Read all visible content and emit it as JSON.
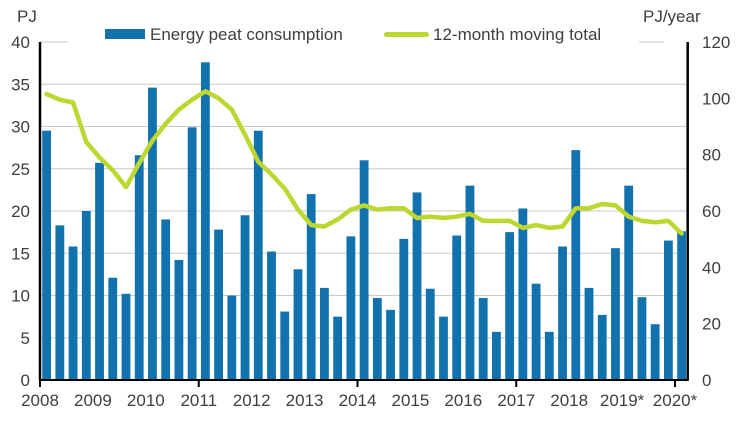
{
  "colors": {
    "bar": "#1272ae",
    "line": "#bed630",
    "grid": "#c9c9c9",
    "axis": "#000000",
    "text": "#3f3f3f",
    "background": "#ffffff"
  },
  "chart_data": {
    "type": "bar+line",
    "title": "",
    "x_frequency": "quarterly",
    "x_start": "2008-Q1",
    "x_axis": {
      "labels": [
        "2008",
        "2009",
        "2010",
        "2011",
        "2012",
        "2013",
        "2014",
        "2015",
        "2016",
        "2017",
        "2018",
        "2019*",
        "2020*"
      ],
      "tick_years": [
        "2008",
        "2011",
        "2014",
        "2017",
        "2020"
      ]
    },
    "left_axis": {
      "title": "PJ",
      "min": 0,
      "max": 40,
      "tick_step": 5,
      "tick_labels": [
        "0",
        "5",
        "10",
        "15",
        "20",
        "25",
        "30",
        "35",
        "40"
      ]
    },
    "right_axis": {
      "title": "PJ/year",
      "min": 0,
      "max": 120,
      "tick_step": 20,
      "tick_labels": [
        "0",
        "20",
        "40",
        "60",
        "80",
        "100",
        "120"
      ]
    },
    "grid": true,
    "legend_position": "top",
    "series": [
      {
        "name": "Energy peat consumption",
        "type": "bar",
        "axis": "left",
        "unit": "PJ",
        "values": [
          29.5,
          18.3,
          15.8,
          20.0,
          25.7,
          12.1,
          10.2,
          26.6,
          34.6,
          19.0,
          14.2,
          29.9,
          37.6,
          17.8,
          10.0,
          19.5,
          29.5,
          15.2,
          8.1,
          13.1,
          22.0,
          10.9,
          7.5,
          17.0,
          26.0,
          9.7,
          8.3,
          16.7,
          22.2,
          10.8,
          7.5,
          17.1,
          23.0,
          9.7,
          5.7,
          17.5,
          20.3,
          11.4,
          5.7,
          15.8,
          27.2,
          10.9,
          7.7,
          15.6,
          23.0,
          9.8,
          6.6,
          16.5,
          17.6
        ]
      },
      {
        "name": "12-month moving total",
        "type": "line",
        "axis": "right",
        "unit": "PJ/year",
        "values": [
          101.5,
          99.5,
          98.5,
          84.5,
          79,
          74.5,
          68.5,
          77,
          85,
          91,
          96,
          99.5,
          102.5,
          100,
          96,
          87,
          77.5,
          73,
          68,
          60.5,
          55,
          54.5,
          57,
          60.5,
          62,
          60.5,
          61,
          61,
          57.5,
          58,
          57.5,
          58,
          59,
          56.5,
          56.5,
          56.5,
          54,
          55,
          54,
          54.5,
          61,
          61,
          62.5,
          62,
          58,
          56.5,
          56,
          56.5,
          52
        ]
      }
    ]
  }
}
